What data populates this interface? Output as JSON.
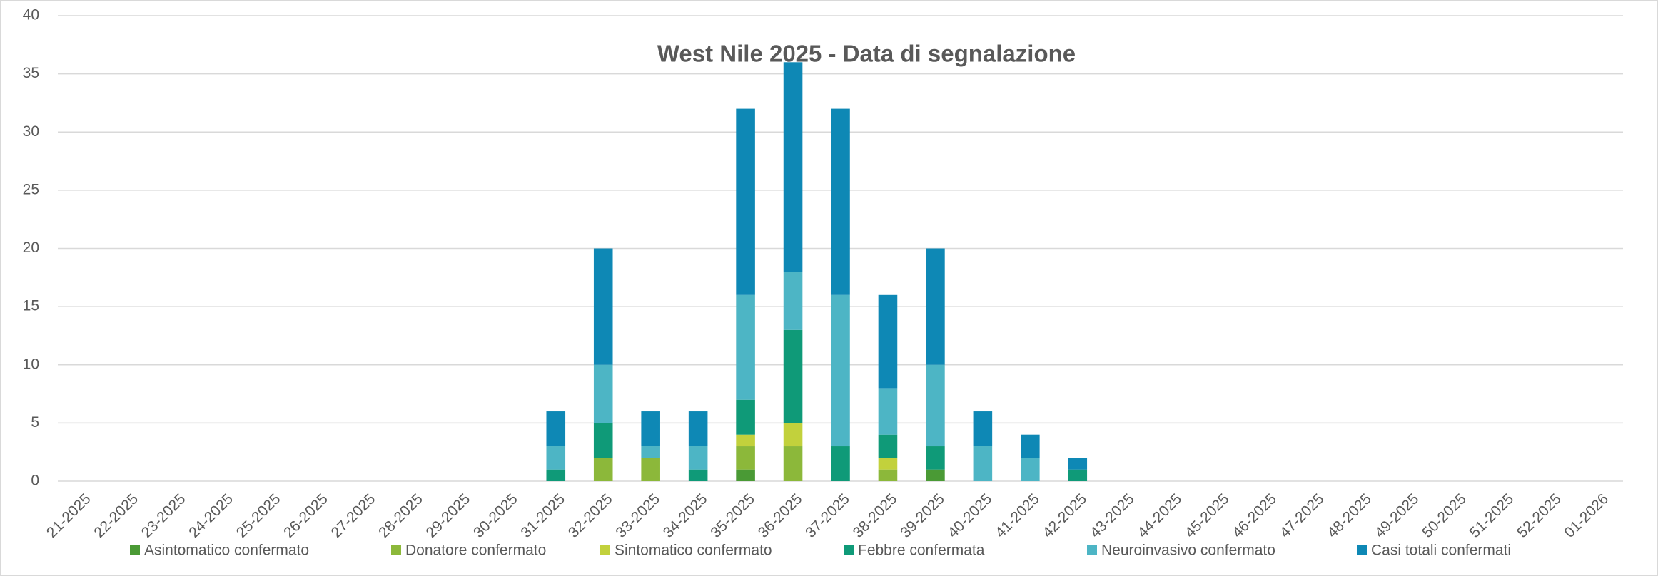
{
  "chart_data": {
    "type": "stacked_bar",
    "title": "West Nile 2025 - Data di segnalazione",
    "categories": [
      "21-2025",
      "22-2025",
      "23-2025",
      "24-2025",
      "25-2025",
      "26-2025",
      "27-2025",
      "28-2025",
      "29-2025",
      "30-2025",
      "31-2025",
      "32-2025",
      "33-2025",
      "34-2025",
      "35-2025",
      "36-2025",
      "37-2025",
      "38-2025",
      "39-2025",
      "40-2025",
      "41-2025",
      "42-2025",
      "43-2025",
      "44-2025",
      "45-2025",
      "46-2025",
      "47-2025",
      "48-2025",
      "49-2025",
      "50-2025",
      "51-2025",
      "52-2025",
      "01-2026"
    ],
    "series": [
      {
        "name": "Asintomatico confermato",
        "color": "#4a9a35",
        "values": [
          0,
          0,
          0,
          0,
          0,
          0,
          0,
          0,
          0,
          0,
          0,
          0,
          0,
          0,
          1,
          0,
          0,
          0,
          1,
          0,
          0,
          0,
          0,
          0,
          0,
          0,
          0,
          0,
          0,
          0,
          0,
          0,
          0
        ]
      },
      {
        "name": "Donatore confermato",
        "color": "#8cb83a",
        "values": [
          0,
          0,
          0,
          0,
          0,
          0,
          0,
          0,
          0,
          0,
          0,
          2,
          2,
          0,
          2,
          3,
          0,
          1,
          0,
          0,
          0,
          0,
          0,
          0,
          0,
          0,
          0,
          0,
          0,
          0,
          0,
          0,
          0
        ]
      },
      {
        "name": "Sintomatico confermato",
        "color": "#c2d13c",
        "values": [
          0,
          0,
          0,
          0,
          0,
          0,
          0,
          0,
          0,
          0,
          0,
          0,
          0,
          0,
          1,
          2,
          0,
          1,
          0,
          0,
          0,
          0,
          0,
          0,
          0,
          0,
          0,
          0,
          0,
          0,
          0,
          0,
          0
        ]
      },
      {
        "name": "Febbre confermata",
        "color": "#0f9a78",
        "values": [
          0,
          0,
          0,
          0,
          0,
          0,
          0,
          0,
          0,
          0,
          1,
          3,
          0,
          1,
          3,
          8,
          3,
          2,
          2,
          0,
          0,
          1,
          0,
          0,
          0,
          0,
          0,
          0,
          0,
          0,
          0,
          0,
          0
        ]
      },
      {
        "name": "Neuroinvasivo confermato",
        "color": "#4db5c5",
        "values": [
          0,
          0,
          0,
          0,
          0,
          0,
          0,
          0,
          0,
          0,
          2,
          5,
          1,
          2,
          9,
          5,
          13,
          4,
          7,
          3,
          2,
          0,
          0,
          0,
          0,
          0,
          0,
          0,
          0,
          0,
          0,
          0,
          0
        ]
      },
      {
        "name": "Casi totali confermati",
        "color": "#0e88b5",
        "values": [
          0,
          0,
          0,
          0,
          0,
          0,
          0,
          0,
          0,
          0,
          3,
          10,
          3,
          3,
          16,
          18,
          16,
          8,
          10,
          3,
          2,
          1,
          0,
          0,
          0,
          0,
          0,
          0,
          0,
          0,
          0,
          0,
          0
        ]
      }
    ],
    "ylim": [
      0,
      40
    ],
    "yticks": [
      0,
      5,
      10,
      15,
      20,
      25,
      30,
      35,
      40
    ],
    "grid": true,
    "legend": "bottom"
  }
}
